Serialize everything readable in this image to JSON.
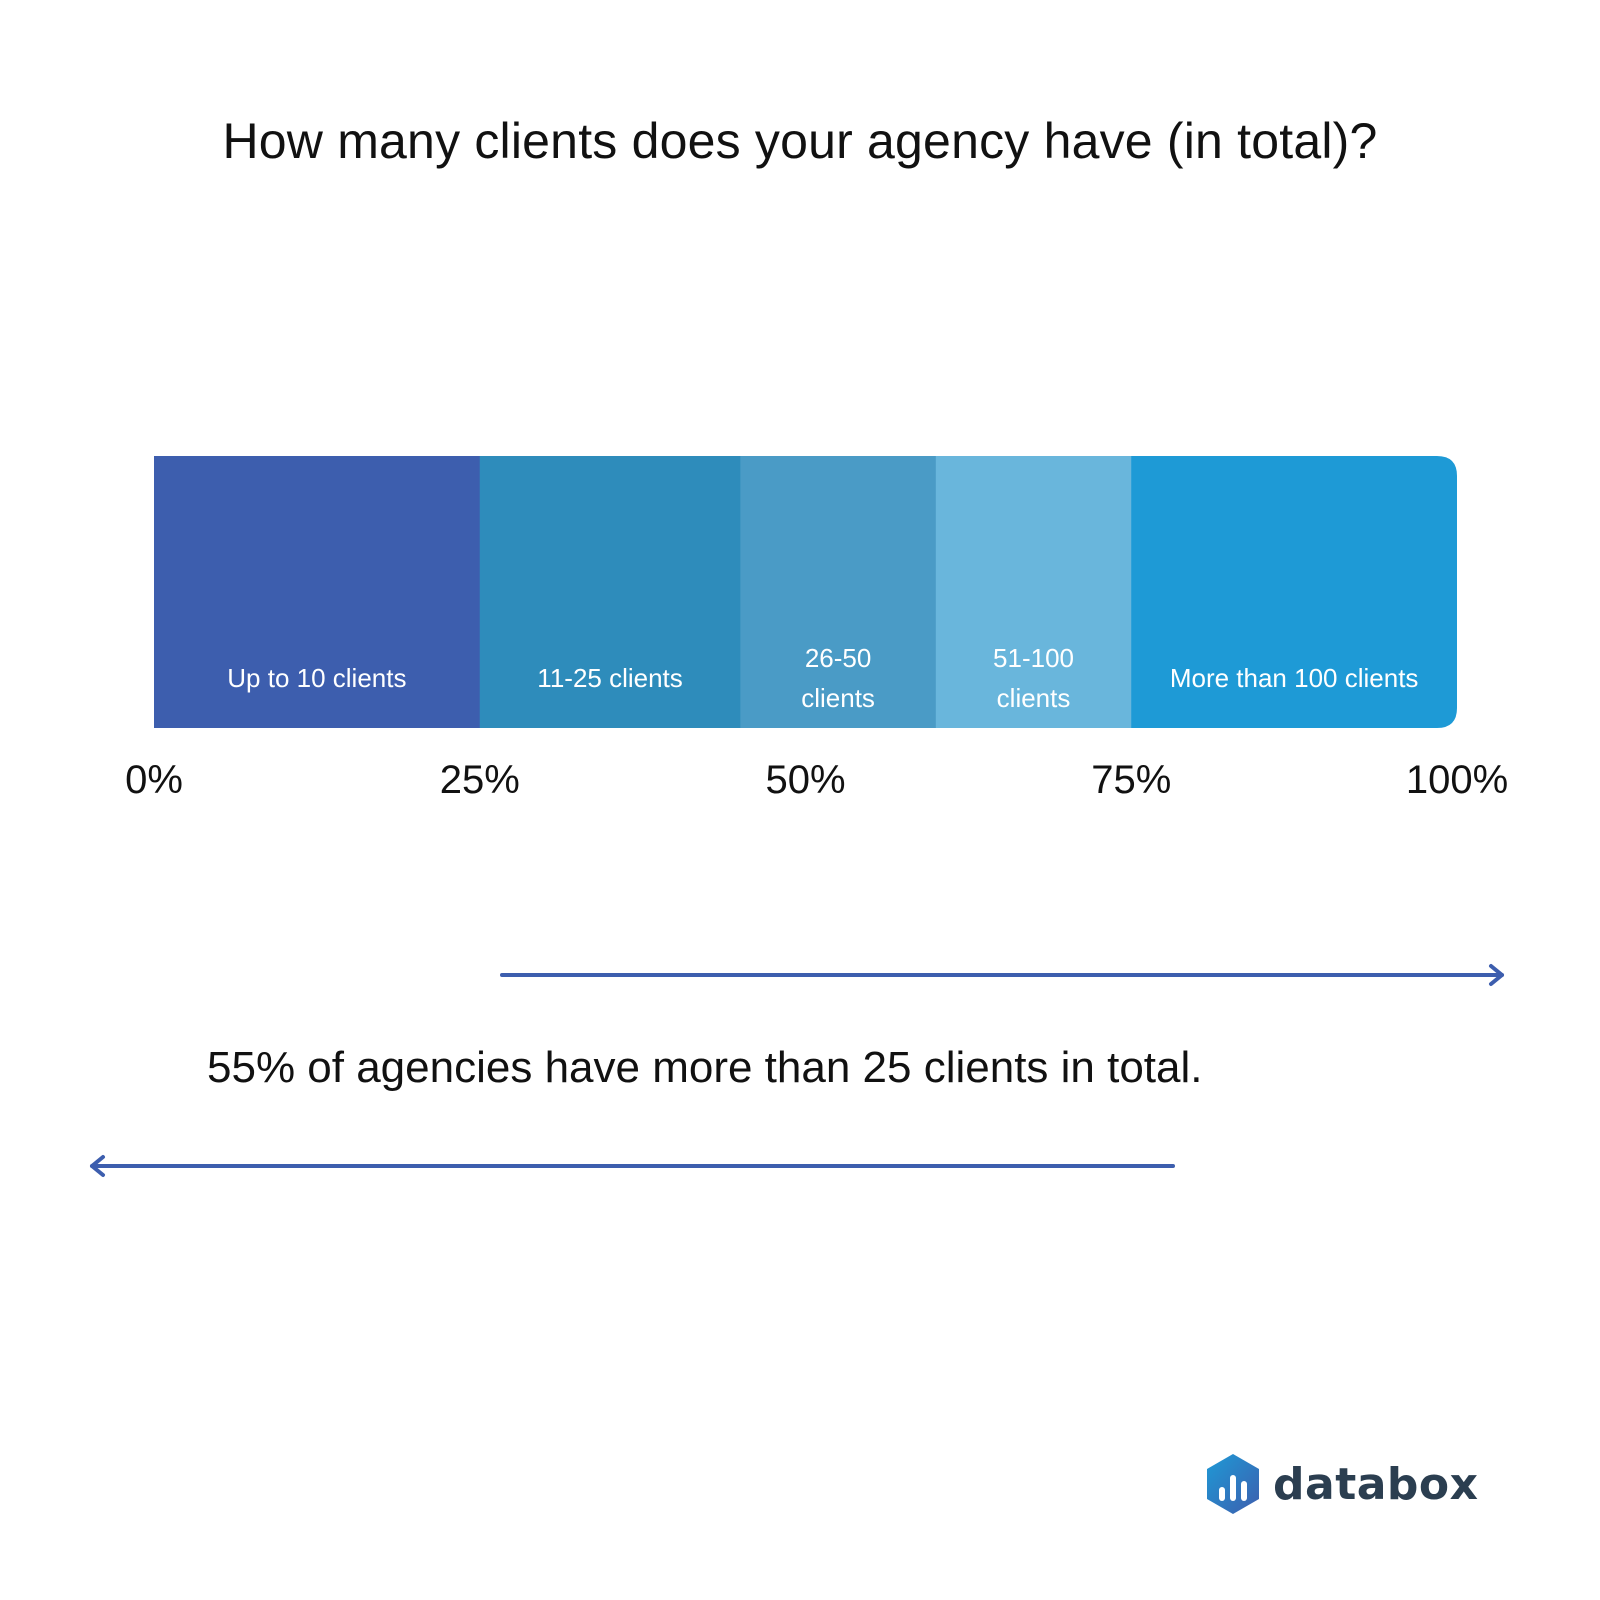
{
  "title": "How many clients does your agency have (in total)?",
  "chart_data": {
    "type": "bar",
    "orientation": "horizontal-stacked",
    "title": "How many clients does your agency have (in total)?",
    "segments": [
      {
        "name": "Up to 10 clients",
        "lines": [
          "Up to 10 clients"
        ],
        "value": 25,
        "color": "#3d5eae"
      },
      {
        "name": "11-25 clients",
        "lines": [
          "11-25 clients"
        ],
        "value": 20,
        "color": "#2e8cbb"
      },
      {
        "name": "26-50 clients",
        "lines": [
          "26-50",
          "clients"
        ],
        "value": 15,
        "color": "#4a9bc6"
      },
      {
        "name": "51-100 clients",
        "lines": [
          "51-100",
          "clients"
        ],
        "value": 15,
        "color": "#69b6dc"
      },
      {
        "name": "More than 100 clients",
        "lines": [
          "More than 100 clients"
        ],
        "value": 25,
        "color": "#1e9ad6"
      }
    ],
    "xlim": [
      0,
      100
    ],
    "ticks": [
      0,
      25,
      50,
      75,
      100
    ],
    "tick_labels": [
      "0%",
      "25%",
      "50%",
      "75%",
      "100%"
    ],
    "grid": false,
    "legend": "none"
  },
  "annotation": {
    "text": "55% of agencies have more than 25 clients in total.",
    "arrow_color": "#3d5eae"
  },
  "logo": {
    "text": "databox"
  }
}
